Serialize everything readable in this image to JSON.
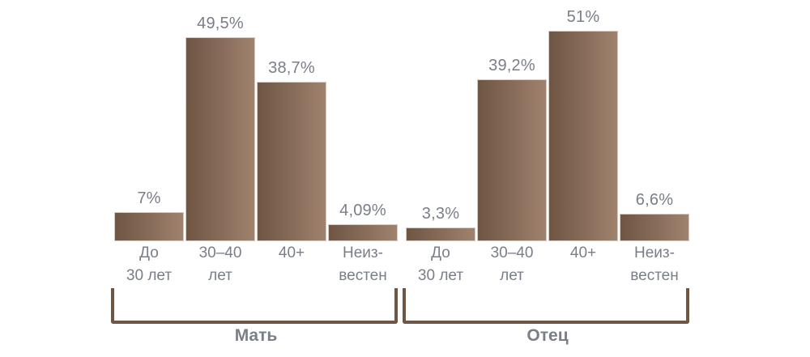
{
  "chart_data": {
    "type": "bar",
    "title": "",
    "xlabel": "",
    "ylabel": "",
    "ylim": [
      0,
      55
    ],
    "grid": false,
    "legend": null,
    "bar_color_gradient": [
      "#6f5543",
      "#a0826e"
    ],
    "text_color": "#7a7e88",
    "bracket_color": "#6f5543",
    "groups": [
      {
        "name": "Мать",
        "categories": [
          "До 30 лет",
          "30–40 лет",
          "40+",
          "Неиз-вестен"
        ],
        "category_lines": [
          [
            "До",
            "30 лет"
          ],
          [
            "30–40",
            "лет"
          ],
          [
            "40+",
            ""
          ],
          [
            "Неиз-",
            "вестен"
          ]
        ],
        "values": [
          7,
          49.5,
          38.7,
          4.09
        ],
        "value_labels": [
          "7%",
          "49,5%",
          "38,7%",
          "4,09%"
        ]
      },
      {
        "name": "Отец",
        "categories": [
          "До 30 лет",
          "30–40 лет",
          "40+",
          "Неиз-вестен"
        ],
        "category_lines": [
          [
            "До",
            "30 лет"
          ],
          [
            "30–40",
            "лет"
          ],
          [
            "40+",
            ""
          ],
          [
            "Неиз-",
            "вестен"
          ]
        ],
        "values": [
          3.3,
          39.2,
          51,
          6.6
        ],
        "value_labels": [
          "3,3%",
          "39,2%",
          "51%",
          "6,6%"
        ]
      }
    ]
  }
}
